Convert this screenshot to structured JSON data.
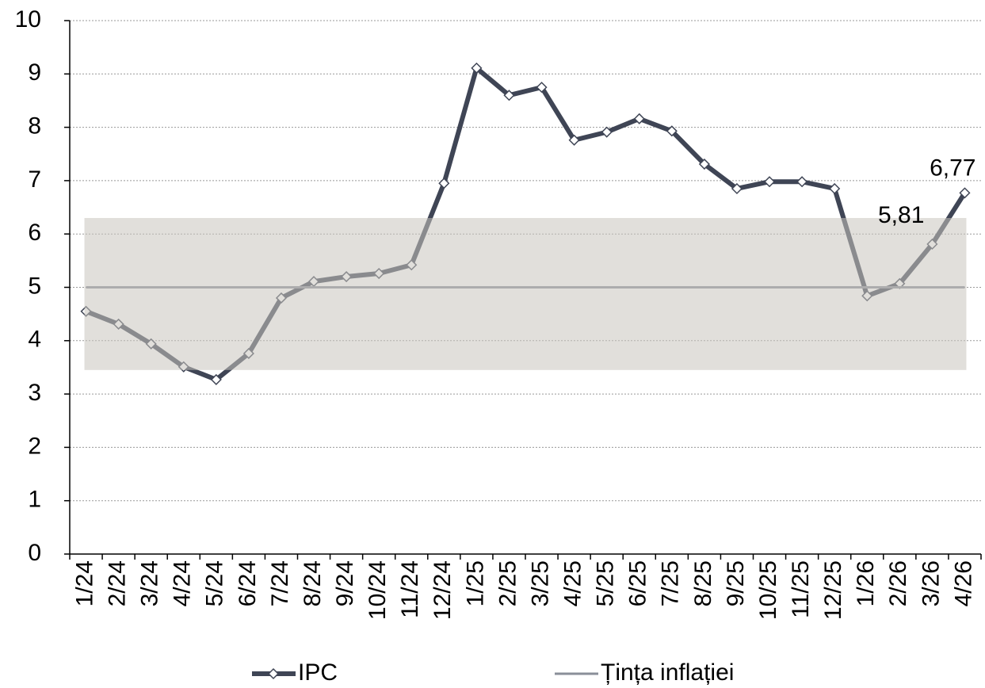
{
  "chart_data": {
    "type": "line",
    "categories": [
      "1/24",
      "2/24",
      "3/24",
      "4/24",
      "5/24",
      "6/24",
      "7/24",
      "8/24",
      "9/24",
      "10/24",
      "11/24",
      "12/24",
      "1/25",
      "2/25",
      "3/25",
      "4/25",
      "5/25",
      "6/25",
      "7/25",
      "8/25",
      "9/25",
      "10/25",
      "11/25",
      "12/25",
      "1/26",
      "2/26",
      "3/26",
      "4/26"
    ],
    "series": [
      {
        "name": "IPC",
        "color": "#3f4555",
        "marker": "diamond",
        "values": [
          4.55,
          4.31,
          3.94,
          3.51,
          3.27,
          3.76,
          4.8,
          5.11,
          5.2,
          5.26,
          5.42,
          6.95,
          9.11,
          8.6,
          8.75,
          7.76,
          7.91,
          8.16,
          7.93,
          7.31,
          6.85,
          6.98,
          6.98,
          6.85,
          4.84,
          5.07,
          5.81,
          6.77
        ],
        "value_labels": [
          null,
          null,
          null,
          null,
          null,
          null,
          null,
          null,
          null,
          null,
          null,
          null,
          null,
          null,
          null,
          null,
          null,
          null,
          null,
          null,
          null,
          null,
          null,
          null,
          null,
          null,
          "5,81",
          "6,77"
        ]
      },
      {
        "name": "Țința inflației",
        "color": "#8a8f99",
        "values": [
          5,
          5,
          5,
          5,
          5,
          5,
          5,
          5,
          5,
          5,
          5,
          5,
          5,
          5,
          5,
          5,
          5,
          5,
          5,
          5,
          5,
          5,
          5,
          5,
          5,
          5,
          5,
          5
        ]
      }
    ],
    "band": [
      3.45,
      6.3
    ],
    "band_color": "#c8c5bd",
    "ylim": [
      0,
      10
    ],
    "yticks": [
      0,
      1,
      2,
      3,
      4,
      5,
      6,
      7,
      8,
      9,
      10
    ],
    "grid": true
  }
}
